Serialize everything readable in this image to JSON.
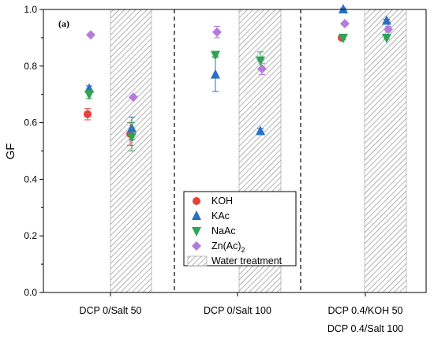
{
  "chart_data": {
    "type": "scatter",
    "panel_tag": "(a)",
    "ylabel": "GF",
    "ylim": [
      0,
      1.0
    ],
    "yticks": [
      "0.0",
      "0.2",
      "0.4",
      "0.6",
      "0.8",
      "1.0"
    ],
    "categories": [
      {
        "label": "DCP 0/Salt 50",
        "label2": ""
      },
      {
        "label": "DCP 0/Salt 100",
        "label2": ""
      },
      {
        "label": "DCP 0.4/KOH 50",
        "label2": "DCP 0.4/Salt 100"
      }
    ],
    "water_label": "Water treatment",
    "series": [
      {
        "name": "KOH",
        "marker": "circle",
        "color": "#e8403a",
        "values": [
          0.63,
          null,
          0.9
        ],
        "errors": [
          0.02,
          null,
          0.005
        ],
        "water": [
          0.56,
          null,
          null
        ],
        "water_err": [
          0.04,
          null,
          null
        ]
      },
      {
        "name": "KAc",
        "marker": "triangle-up",
        "color": "#2a6fc9",
        "values": [
          0.72,
          0.77,
          1.0
        ],
        "errors": [
          0.01,
          0.06,
          0.005
        ],
        "water": [
          0.58,
          0.57,
          0.96
        ],
        "water_err": [
          0.04,
          0.01,
          0.005
        ]
      },
      {
        "name": "NaAc",
        "marker": "triangle-down",
        "color": "#2fa356",
        "values": [
          0.7,
          0.84,
          0.9
        ],
        "errors": [
          0.015,
          0.005,
          0.005
        ],
        "water": [
          0.55,
          0.82,
          0.9
        ],
        "water_err": [
          0.05,
          0.03,
          0.005
        ]
      },
      {
        "name": "Zn(Ac)",
        "subscript": "2",
        "marker": "diamond",
        "color": "#b57bdc",
        "values": [
          0.91,
          0.92,
          0.95
        ],
        "errors": [
          0.005,
          0.02,
          0.005
        ],
        "water": [
          0.69,
          0.79,
          0.93
        ],
        "water_err": [
          0.005,
          0.02,
          0.01
        ]
      }
    ]
  }
}
